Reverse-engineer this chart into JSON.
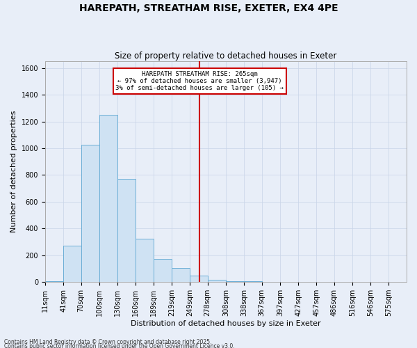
{
  "title": "HAREPATH, STREATHAM RISE, EXETER, EX4 4PE",
  "subtitle": "Size of property relative to detached houses in Exeter",
  "xlabel": "Distribution of detached houses by size in Exeter",
  "ylabel": "Number of detached properties",
  "footnote1": "Contains HM Land Registry data © Crown copyright and database right 2025.",
  "footnote2": "Contains public sector information licensed under the Open Government Licence v3.0.",
  "bar_color": "#cfe2f3",
  "bar_edge_color": "#6baed6",
  "vline_color": "#cc0000",
  "vline_value": 265,
  "ann_line1": "HAREPATH STREATHAM RISE: 265sqm",
  "ann_line2": "← 97% of detached houses are smaller (3,947)",
  "ann_line3": "3% of semi-detached houses are larger (105) →",
  "annotation_box_color": "#cc0000",
  "annotation_fill": "#ffffff",
  "bins": [
    11,
    41,
    70,
    100,
    130,
    160,
    189,
    219,
    249,
    278,
    308,
    338,
    367,
    397,
    427,
    457,
    486,
    516,
    546,
    575,
    605
  ],
  "counts": [
    5,
    272,
    1025,
    1250,
    770,
    325,
    175,
    105,
    50,
    18,
    8,
    4,
    2,
    1,
    0,
    0,
    0,
    0,
    0,
    0
  ],
  "ylim": [
    0,
    1650
  ],
  "yticks": [
    0,
    200,
    400,
    600,
    800,
    1000,
    1200,
    1400,
    1600
  ],
  "grid_color": "#c8d4e8",
  "bg_color": "#e8eef8",
  "title_fontsize": 10,
  "subtitle_fontsize": 8.5,
  "axis_label_fontsize": 8,
  "tick_fontsize": 7,
  "footnote_fontsize": 5.5
}
